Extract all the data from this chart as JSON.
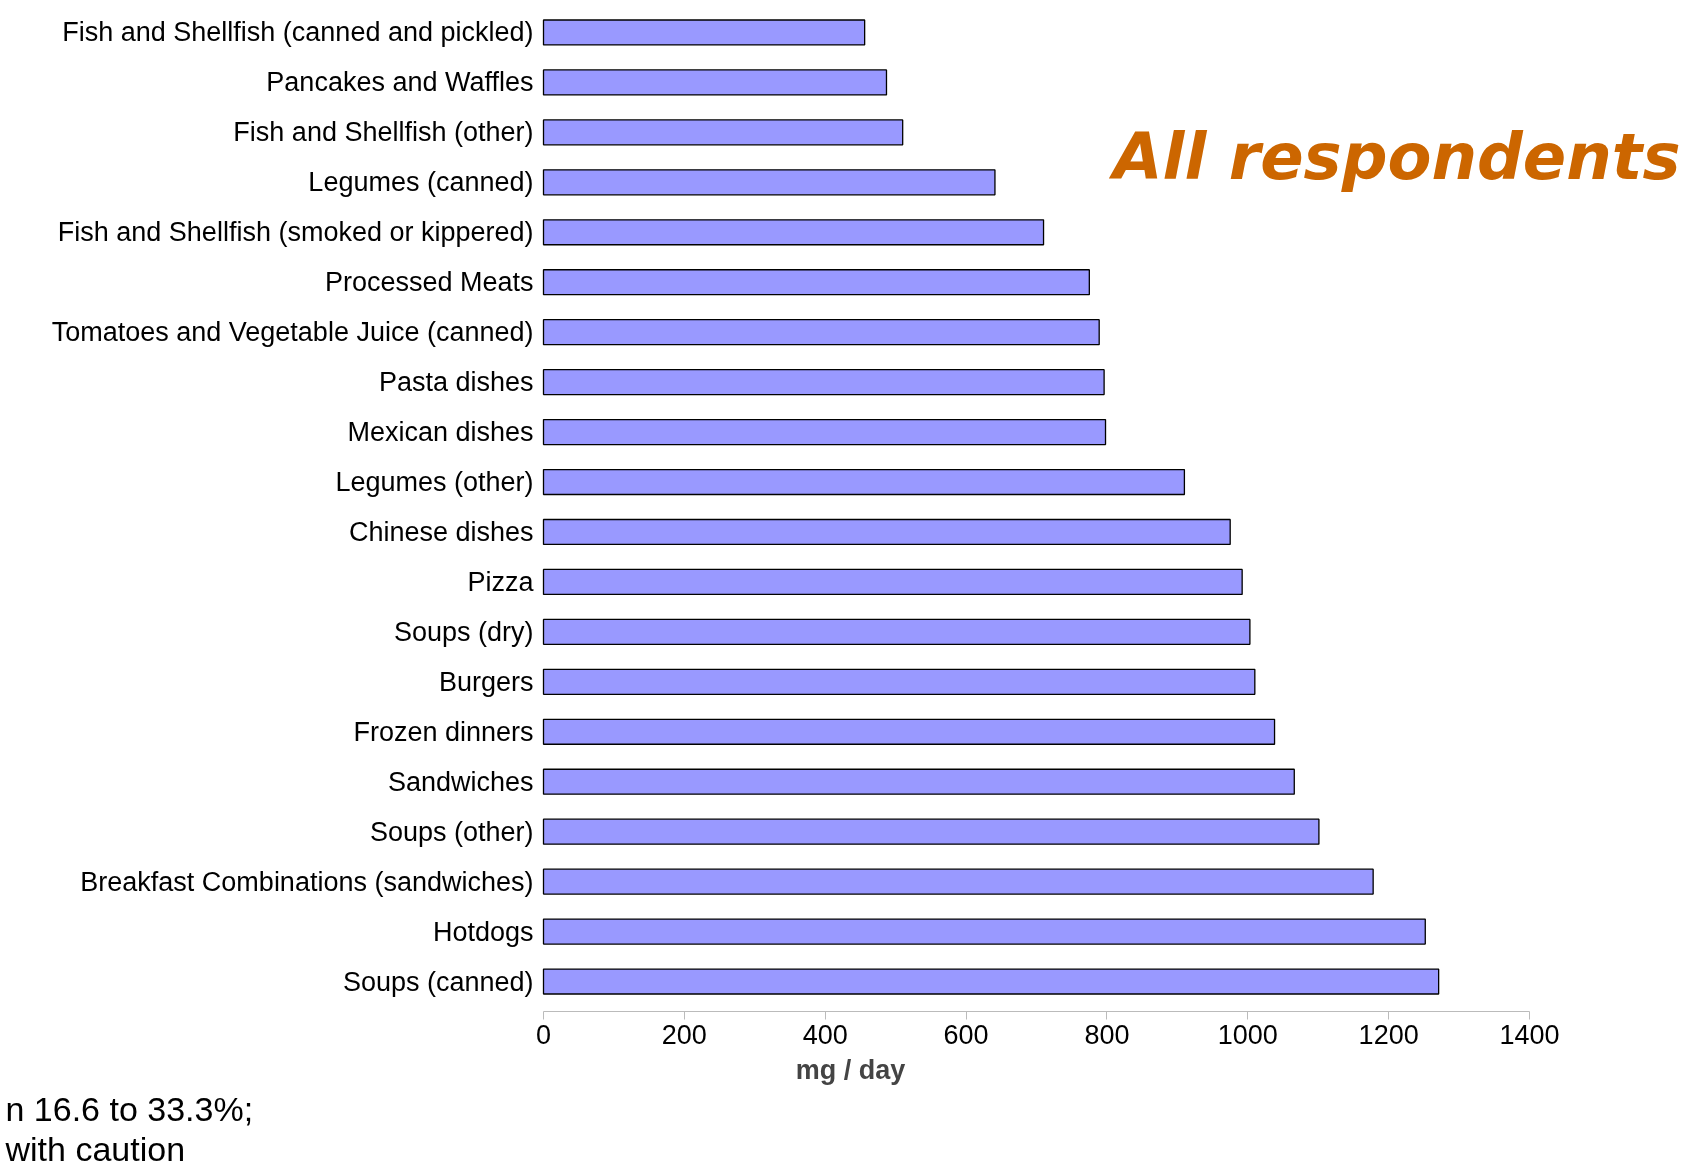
{
  "chart_data": {
    "type": "bar",
    "orientation": "horizontal",
    "title": "All respondents",
    "xlabel": "mg / day",
    "categories": [
      "Fish and Shellfish (canned and pickled)",
      "Pancakes and Waffles",
      "Fish and Shellfish (other)",
      "Legumes (canned)",
      "Fish and Shellfish (smoked or kippered)",
      "Processed Meats",
      "Tomatoes and Vegetable Juice (canned)",
      "Pasta dishes",
      "Mexican dishes",
      "Legumes (other)",
      "Chinese dishes",
      "Pizza",
      "Soups (dry)",
      "Burgers",
      "Frozen dinners",
      "Sandwiches",
      "Soups (other)",
      "Breakfast Combinations (sandwiches)",
      "Hotdogs",
      "Soups (canned)"
    ],
    "values": [
      456,
      487,
      510,
      641,
      710,
      775,
      789,
      796,
      798,
      910,
      975,
      992,
      1003,
      1010,
      1038,
      1066,
      1101,
      1178,
      1252,
      1271
    ],
    "color": "#9999ff",
    "xlim": [
      0,
      1400
    ],
    "xticks": [
      0,
      200,
      400,
      600,
      800,
      1000,
      1200,
      1400
    ],
    "grid": false,
    "annotations": [
      "n 16.6 to 33.3%;",
      "with caution"
    ]
  }
}
